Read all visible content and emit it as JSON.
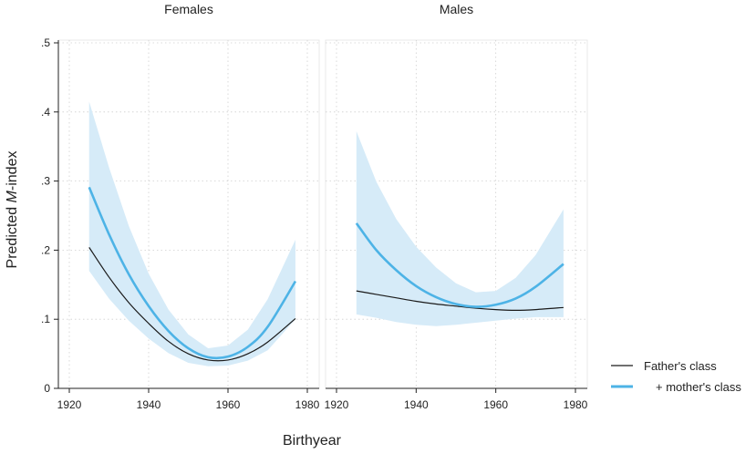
{
  "chart_data": {
    "type": "line",
    "xlabel": "Birthyear",
    "ylabel": {
      "prefix": "Predicted ",
      "italic": "M",
      "suffix": "-index"
    },
    "xlim": [
      1920,
      1980
    ],
    "ylim": [
      0,
      0.5
    ],
    "xticks": [
      {
        "value": 1920,
        "label": "1920"
      },
      {
        "value": 1940,
        "label": "1940"
      },
      {
        "value": 1960,
        "label": "1960"
      },
      {
        "value": 1980,
        "label": "1980"
      }
    ],
    "yticks": [
      {
        "value": 0,
        "label": "0"
      },
      {
        "value": 0.1,
        "label": ".1"
      },
      {
        "value": 0.2,
        "label": ".2"
      },
      {
        "value": 0.3,
        "label": ".3"
      },
      {
        "value": 0.4,
        "label": ".4"
      },
      {
        "value": 0.5,
        "label": ".5"
      }
    ],
    "grid": true,
    "legend": {
      "position": "bottom-right",
      "entries": [
        {
          "label": "Father's class",
          "color": "#1a1a1a"
        },
        {
          "label": "+ mother's class",
          "color": "#4db3e6"
        }
      ]
    },
    "colors": {
      "father": "#1a1a1a",
      "mother": "#4db3e6",
      "band": "#d6ebf8"
    },
    "panels": [
      {
        "title": "Females",
        "series": [
          {
            "name": "Father's class",
            "x": [
              1925,
              1930,
              1935,
              1940,
              1945,
              1950,
              1955,
              1960,
              1965,
              1970,
              1977
            ],
            "y": [
              0.204,
              0.161,
              0.124,
              0.094,
              0.068,
              0.05,
              0.041,
              0.041,
              0.05,
              0.067,
              0.101
            ]
          },
          {
            "name": "+ mother's class",
            "x": [
              1925,
              1930,
              1935,
              1940,
              1945,
              1950,
              1955,
              1960,
              1965,
              1970,
              1977
            ],
            "y": [
              0.291,
              0.223,
              0.165,
              0.119,
              0.083,
              0.058,
              0.045,
              0.046,
              0.06,
              0.089,
              0.155
            ],
            "ci_lower": [
              0.17,
              0.13,
              0.098,
              0.072,
              0.051,
              0.037,
              0.032,
              0.033,
              0.04,
              0.055,
              0.1
            ],
            "ci_upper": [
              0.415,
              0.32,
              0.235,
              0.166,
              0.114,
              0.078,
              0.058,
              0.062,
              0.085,
              0.129,
              0.215
            ]
          }
        ]
      },
      {
        "title": "Males",
        "series": [
          {
            "name": "Father's class",
            "x": [
              1925,
              1930,
              1935,
              1940,
              1945,
              1950,
              1955,
              1960,
              1965,
              1970,
              1977
            ],
            "y": [
              0.141,
              0.136,
              0.131,
              0.126,
              0.122,
              0.119,
              0.116,
              0.114,
              0.113,
              0.114,
              0.117
            ]
          },
          {
            "name": "+ mother's class",
            "x": [
              1925,
              1930,
              1935,
              1940,
              1945,
              1950,
              1955,
              1960,
              1965,
              1970,
              1977
            ],
            "y": [
              0.239,
              0.2,
              0.171,
              0.148,
              0.132,
              0.122,
              0.118,
              0.121,
              0.13,
              0.147,
              0.18
            ],
            "ci_lower": [
              0.107,
              0.102,
              0.096,
              0.092,
              0.09,
              0.092,
              0.095,
              0.098,
              0.101,
              0.103,
              0.103
            ],
            "ci_upper": [
              0.372,
              0.299,
              0.245,
              0.205,
              0.175,
              0.152,
              0.139,
              0.141,
              0.16,
              0.193,
              0.259
            ]
          }
        ]
      }
    ]
  }
}
